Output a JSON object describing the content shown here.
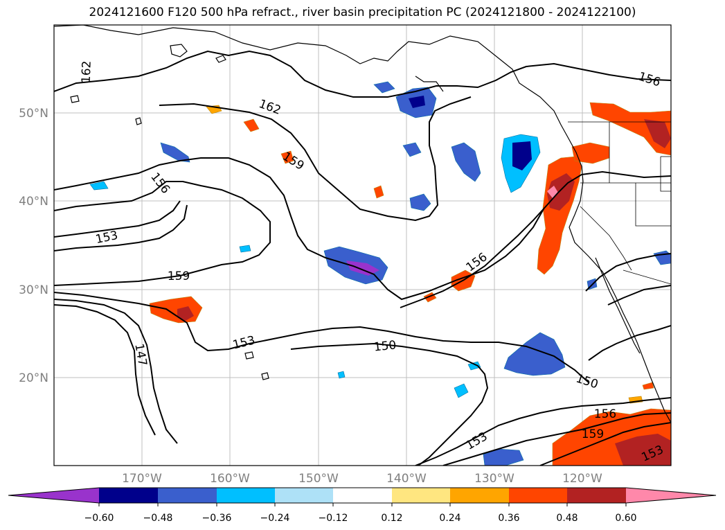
{
  "title": "2024121600 F120 500 hPa refract., river basin precipitation PC (2024121800 - 2024122100)",
  "lat_labels": [
    "50°N",
    "40°N",
    "30°N",
    "20°N"
  ],
  "lon_labels": [
    "170°W",
    "160°W",
    "150°W",
    "140°W",
    "130°W",
    "120°W"
  ],
  "colorbar": {
    "tick_labels": [
      "−0.60",
      "−0.48",
      "−0.36",
      "−0.24",
      "−0.12",
      "0.12",
      "0.24",
      "0.36",
      "0.48",
      "0.60"
    ],
    "colors": [
      "#9933cc",
      "#00008b",
      "#3a5fcd",
      "#00bfff",
      "#aee1f7",
      "#ffffff",
      "#ffe680",
      "#ffa500",
      "#ff4500",
      "#b22222",
      "#ff88aa"
    ]
  },
  "contour_labels": [
    "162",
    "162",
    "159",
    "156",
    "153",
    "159",
    "147",
    "153",
    "150",
    "156",
    "150",
    "156",
    "159",
    "153",
    "153",
    "156"
  ],
  "colors": {
    "contour": "#000000",
    "grid": "#bfbfbf",
    "coast": "#000000"
  }
}
